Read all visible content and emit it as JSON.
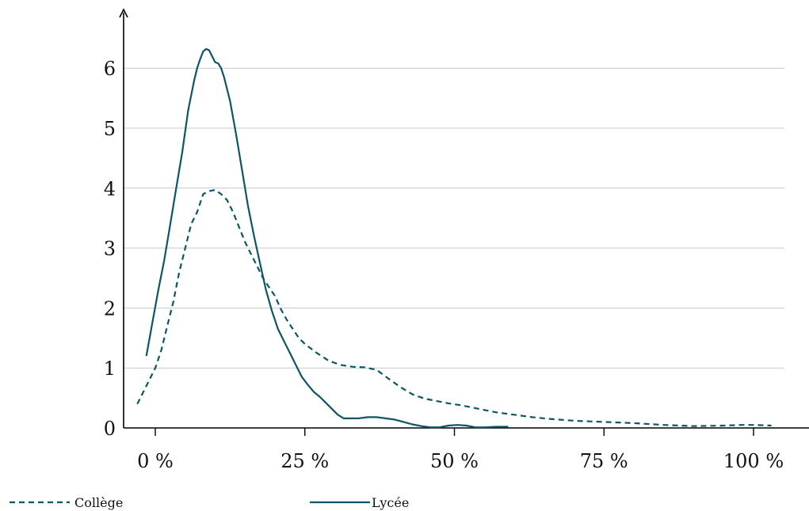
{
  "chart_data": {
    "type": "line",
    "title": "",
    "xlabel": "",
    "ylabel": "",
    "xlim": [
      -5,
      110
    ],
    "ylim": [
      0,
      7
    ],
    "grid": "horizontal",
    "legend_position": "bottom",
    "x_ticks": [
      0,
      25,
      50,
      75,
      100
    ],
    "x_tick_labels": [
      "0 %",
      "25 %",
      "50 %",
      "75 %",
      "100 %"
    ],
    "y_ticks": [
      0,
      1,
      2,
      3,
      4,
      5,
      6
    ],
    "y_tick_labels": [
      "0",
      "1",
      "2",
      "3",
      "4",
      "5",
      "6"
    ],
    "colors": {
      "series": "#0e5566",
      "grid": "#c8c8c8",
      "axis": "#000000"
    },
    "series": [
      {
        "name": "Collège",
        "style": "dashed",
        "points": [
          [
            -3,
            0.4
          ],
          [
            -2,
            0.6
          ],
          [
            -1,
            0.8
          ],
          [
            0,
            1.0
          ],
          [
            1,
            1.3
          ],
          [
            2,
            1.7
          ],
          [
            3,
            2.1
          ],
          [
            4,
            2.6
          ],
          [
            5,
            3.0
          ],
          [
            6,
            3.4
          ],
          [
            7,
            3.6
          ],
          [
            8,
            3.9
          ],
          [
            9,
            3.95
          ],
          [
            10,
            3.97
          ],
          [
            11,
            3.9
          ],
          [
            12,
            3.8
          ],
          [
            13,
            3.6
          ],
          [
            14,
            3.35
          ],
          [
            15,
            3.1
          ],
          [
            16,
            2.9
          ],
          [
            17,
            2.7
          ],
          [
            18,
            2.5
          ],
          [
            19,
            2.35
          ],
          [
            20,
            2.2
          ],
          [
            21,
            1.98
          ],
          [
            22,
            1.8
          ],
          [
            23,
            1.65
          ],
          [
            24,
            1.5
          ],
          [
            25,
            1.4
          ],
          [
            27,
            1.25
          ],
          [
            29,
            1.12
          ],
          [
            31,
            1.05
          ],
          [
            33,
            1.02
          ],
          [
            35,
            1.01
          ],
          [
            37,
            0.97
          ],
          [
            39,
            0.82
          ],
          [
            41,
            0.68
          ],
          [
            43,
            0.56
          ],
          [
            45,
            0.49
          ],
          [
            47,
            0.45
          ],
          [
            49,
            0.41
          ],
          [
            51,
            0.38
          ],
          [
            53,
            0.34
          ],
          [
            55,
            0.3
          ],
          [
            57,
            0.26
          ],
          [
            60,
            0.22
          ],
          [
            63,
            0.18
          ],
          [
            66,
            0.15
          ],
          [
            70,
            0.12
          ],
          [
            75,
            0.1
          ],
          [
            80,
            0.08
          ],
          [
            85,
            0.05
          ],
          [
            90,
            0.03
          ],
          [
            95,
            0.04
          ],
          [
            98,
            0.05
          ],
          [
            100,
            0.05
          ],
          [
            103,
            0.04
          ]
        ]
      },
      {
        "name": "Lycée",
        "style": "solid",
        "points": [
          [
            -1.5,
            1.2
          ],
          [
            -0.5,
            1.75
          ],
          [
            0.5,
            2.3
          ],
          [
            1.5,
            2.8
          ],
          [
            2.5,
            3.4
          ],
          [
            3.5,
            4.0
          ],
          [
            4.5,
            4.6
          ],
          [
            5.5,
            5.3
          ],
          [
            6.5,
            5.8
          ],
          [
            7,
            6.0
          ],
          [
            7.5,
            6.15
          ],
          [
            8,
            6.28
          ],
          [
            8.5,
            6.32
          ],
          [
            9,
            6.3
          ],
          [
            9.5,
            6.2
          ],
          [
            10,
            6.1
          ],
          [
            10.5,
            6.08
          ],
          [
            11,
            6.0
          ],
          [
            11.5,
            5.85
          ],
          [
            12.5,
            5.45
          ],
          [
            13.5,
            4.9
          ],
          [
            14.5,
            4.3
          ],
          [
            15.5,
            3.7
          ],
          [
            16.5,
            3.2
          ],
          [
            17.5,
            2.75
          ],
          [
            18.5,
            2.3
          ],
          [
            19.5,
            1.95
          ],
          [
            20.5,
            1.65
          ],
          [
            21.5,
            1.45
          ],
          [
            22.5,
            1.25
          ],
          [
            23.5,
            1.05
          ],
          [
            24.5,
            0.85
          ],
          [
            25.5,
            0.72
          ],
          [
            26.5,
            0.6
          ],
          [
            27.5,
            0.52
          ],
          [
            28.5,
            0.42
          ],
          [
            29.5,
            0.32
          ],
          [
            30.5,
            0.22
          ],
          [
            31.5,
            0.16
          ],
          [
            32.5,
            0.16
          ],
          [
            34,
            0.16
          ],
          [
            35.5,
            0.18
          ],
          [
            37,
            0.18
          ],
          [
            38.5,
            0.16
          ],
          [
            40,
            0.14
          ],
          [
            41.5,
            0.1
          ],
          [
            43,
            0.06
          ],
          [
            44.5,
            0.03
          ],
          [
            46,
            0.01
          ],
          [
            47.5,
            0.01
          ],
          [
            49,
            0.04
          ],
          [
            50.5,
            0.05
          ],
          [
            52,
            0.04
          ],
          [
            53.5,
            0.01
          ],
          [
            55,
            0.01
          ],
          [
            57,
            0.02
          ],
          [
            59,
            0.02
          ]
        ]
      }
    ]
  }
}
